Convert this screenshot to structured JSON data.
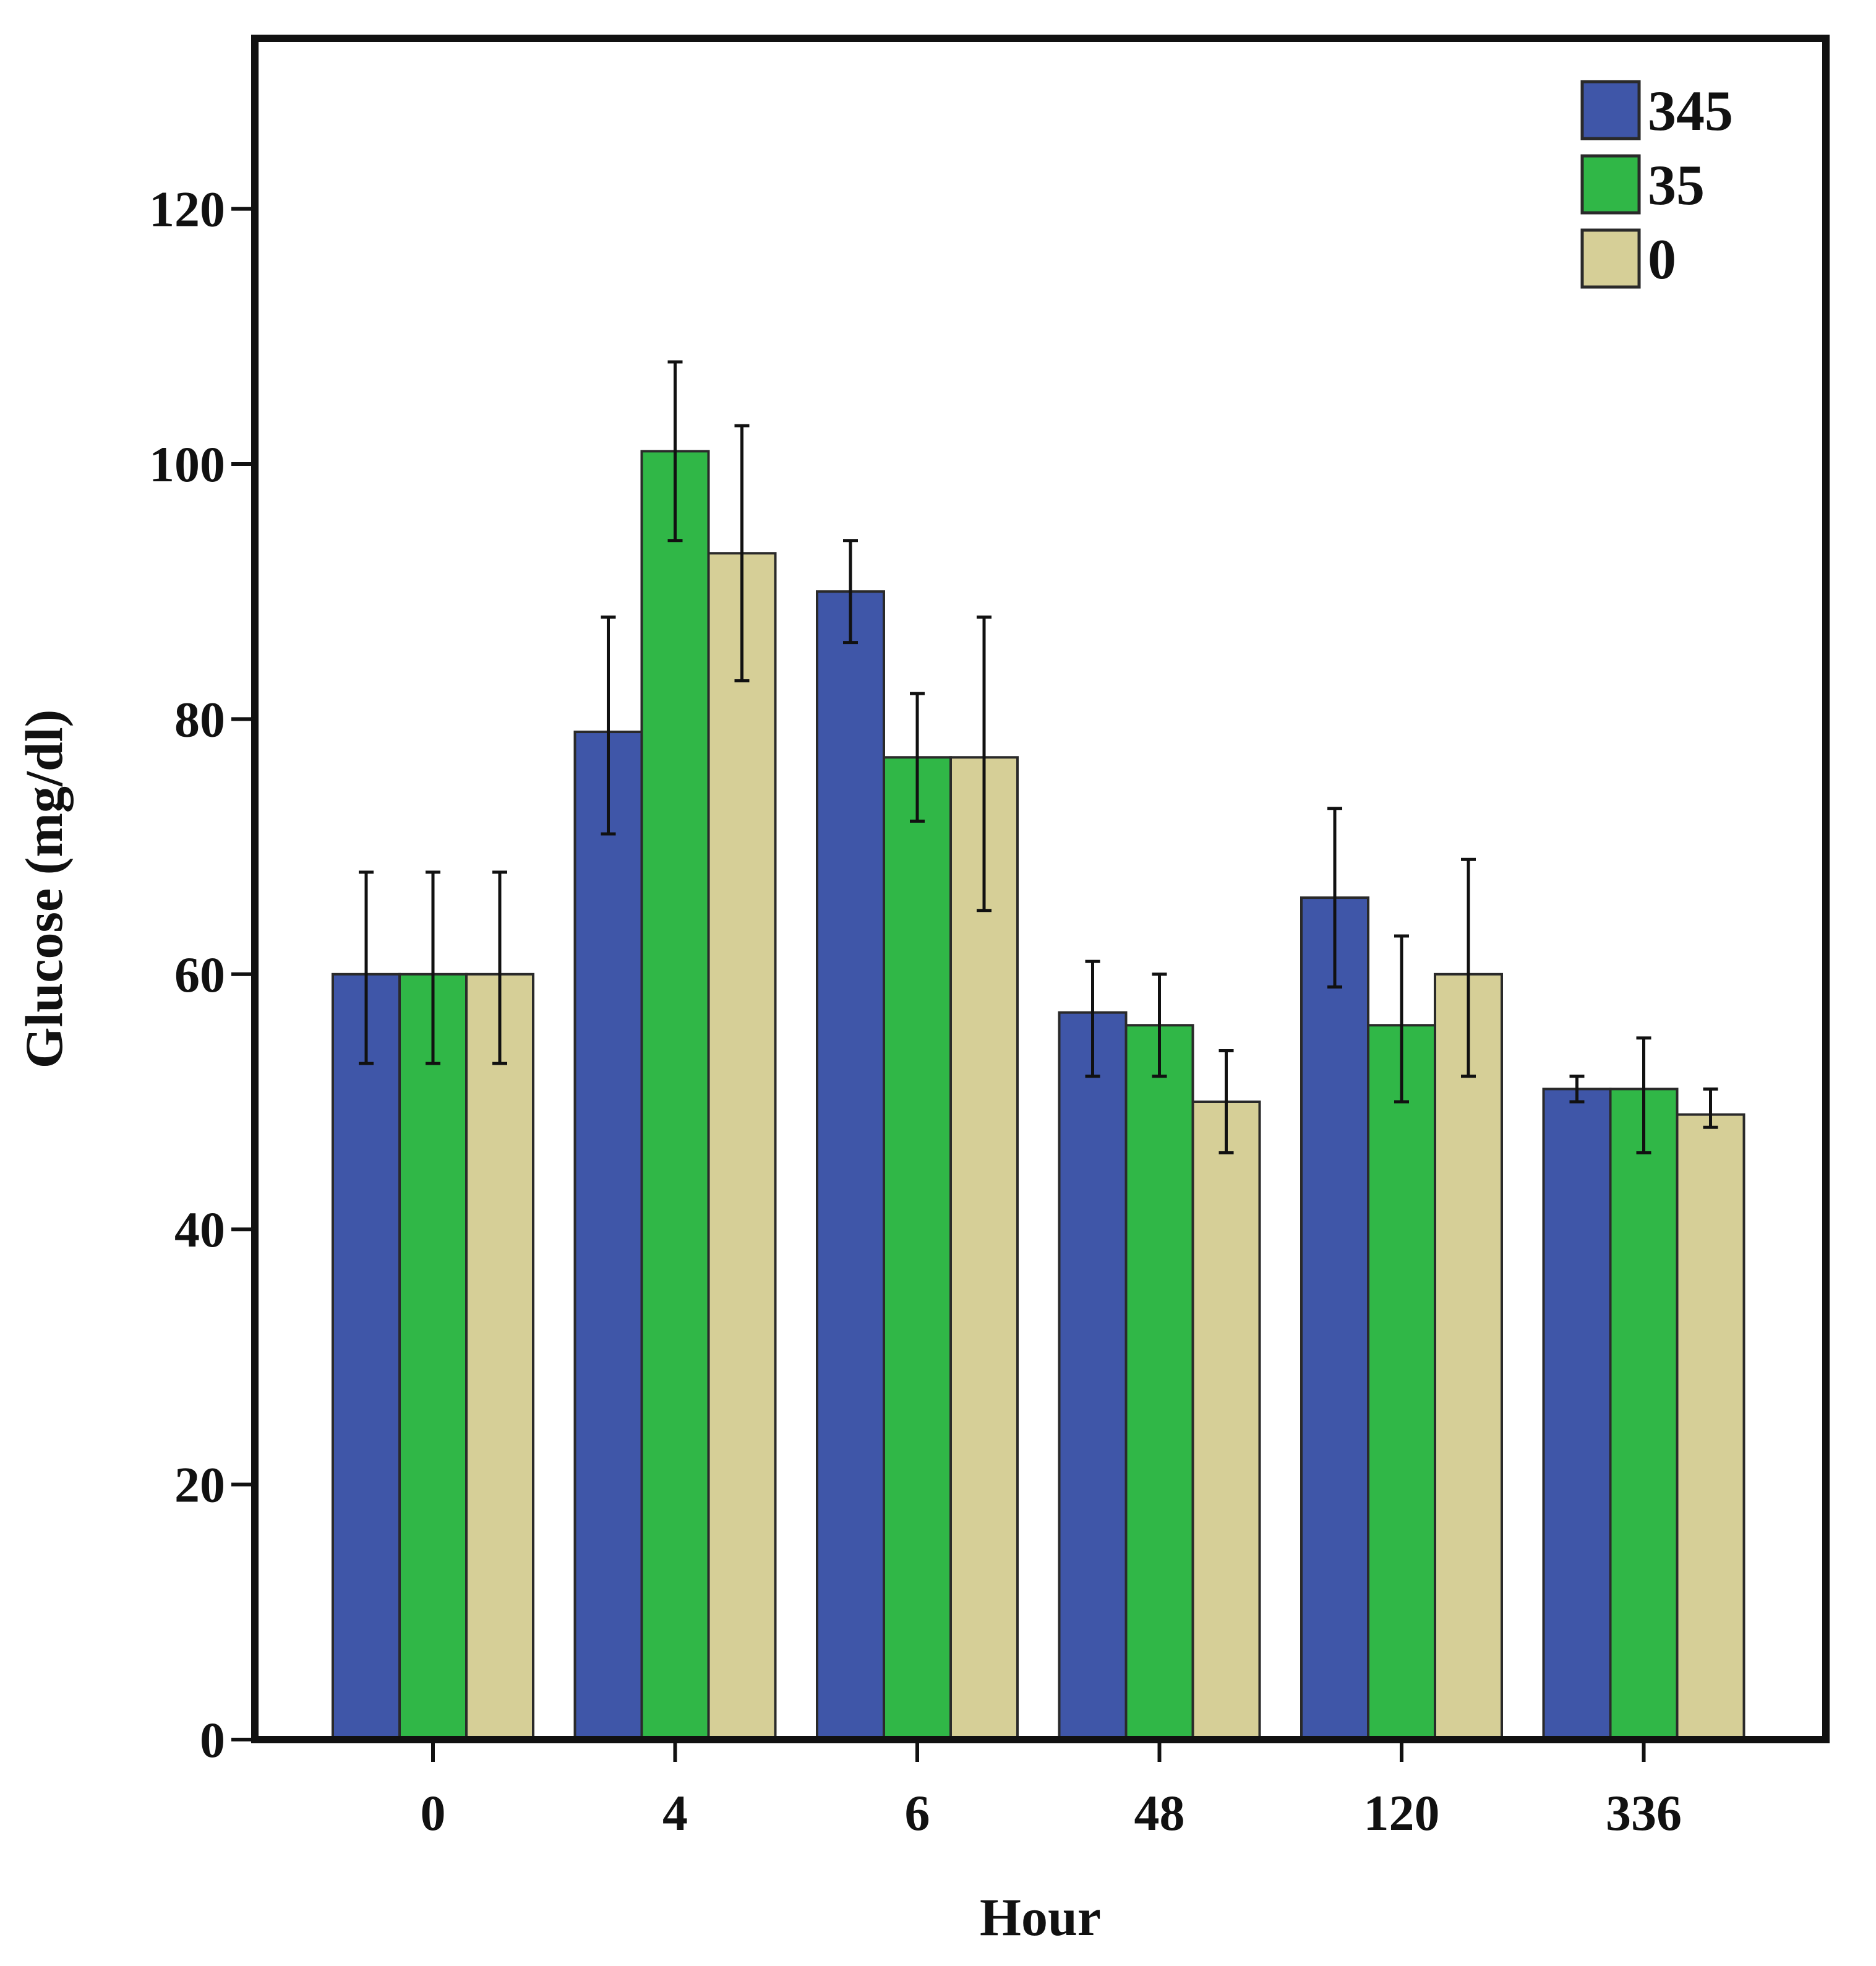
{
  "chart_data": {
    "type": "bar",
    "title": "",
    "xlabel": "Hour",
    "ylabel": "Glucose (mg/dl)",
    "ylim": [
      0,
      133
    ],
    "yticks": [
      0,
      20,
      40,
      60,
      80,
      100,
      120
    ],
    "categories": [
      "0",
      "4",
      "6",
      "48",
      "120",
      "336"
    ],
    "legend_position": "top-right",
    "series": [
      {
        "name": "345",
        "color": "#3f56a8",
        "values": [
          60,
          79,
          90,
          57,
          66,
          51
        ],
        "err_low": [
          53,
          71,
          86,
          52,
          59,
          50
        ],
        "err_high": [
          68,
          88,
          94,
          61,
          73,
          52
        ]
      },
      {
        "name": "35",
        "color": "#30b747",
        "values": [
          60,
          101,
          77,
          56,
          56,
          51
        ],
        "err_low": [
          53,
          94,
          72,
          52,
          50,
          46
        ],
        "err_high": [
          68,
          108,
          82,
          60,
          63,
          55
        ]
      },
      {
        "name": "0",
        "color": "#d6cf97",
        "values": [
          60,
          93,
          77,
          50,
          60,
          49
        ],
        "err_low": [
          53,
          83,
          65,
          46,
          52,
          48
        ],
        "err_high": [
          68,
          103,
          88,
          54,
          69,
          51
        ]
      }
    ]
  }
}
